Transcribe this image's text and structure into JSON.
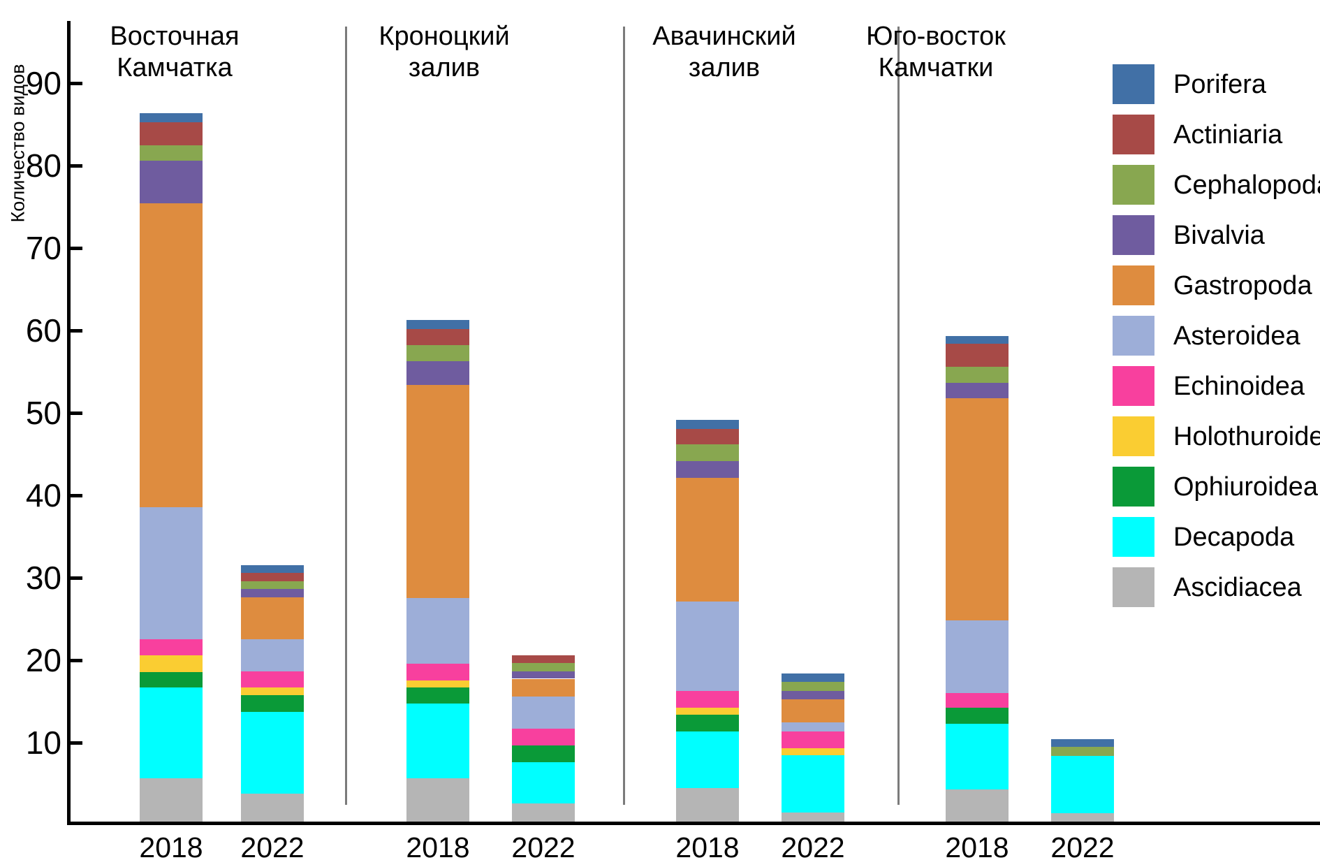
{
  "chart_data": {
    "type": "bar",
    "stacked": true,
    "title": "",
    "xlabel": "",
    "ylabel": "Количество видов",
    "ylim": [
      0,
      95
    ],
    "yticks": [
      10,
      20,
      30,
      40,
      50,
      60,
      70,
      80,
      90
    ],
    "grid": false,
    "legend_position": "right-top",
    "groups": [
      {
        "title_lines": [
          "Восточная",
          "Камчатка"
        ]
      },
      {
        "title_lines": [
          "Кроноцкий",
          "залив"
        ]
      },
      {
        "title_lines": [
          "Авачинский",
          "залив"
        ]
      },
      {
        "title_lines": [
          "Юго-восток",
          "Камчатки"
        ]
      }
    ],
    "x_categories": [
      "2018",
      "2022",
      "2018",
      "2022",
      "2018",
      "2022",
      "2018",
      "2022"
    ],
    "stack_order_bottom_to_top": [
      "Ascidiacea",
      "Decapoda",
      "Ophiuroidea",
      "Holothuroidea",
      "Echinoidea",
      "Asteroidea",
      "Gastropoda",
      "Bivalvia",
      "Cephalopoda",
      "Actiniaria",
      "Porifera"
    ],
    "series": [
      {
        "name": "Porifera",
        "color": "#4170A6",
        "values": [
          1.1,
          1.0,
          1.1,
          0,
          1.1,
          1.0,
          1.0,
          1.0
        ]
      },
      {
        "name": "Actiniaria",
        "color": "#A74A47",
        "values": [
          2.8,
          1.0,
          1.9,
          0.9,
          1.9,
          0,
          2.8,
          0
        ]
      },
      {
        "name": "Cephalopoda",
        "color": "#88A750",
        "values": [
          1.9,
          0.9,
          2.0,
          1.0,
          2.0,
          1.1,
          1.9,
          1.1
        ]
      },
      {
        "name": "Bivalvia",
        "color": "#6F5C9F",
        "values": [
          5.1,
          1.0,
          2.9,
          0.9,
          2.0,
          1.0,
          1.9,
          0
        ]
      },
      {
        "name": "Gastropoda",
        "color": "#DE8C3F",
        "values": [
          36.9,
          5.1,
          25.8,
          2.2,
          15.0,
          2.8,
          26.9,
          0
        ]
      },
      {
        "name": "Asteroidea",
        "color": "#9DAED8",
        "values": [
          16.0,
          3.9,
          8.0,
          3.9,
          10.9,
          1.1,
          8.8,
          0
        ]
      },
      {
        "name": "Echinoidea",
        "color": "#F8409E",
        "values": [
          2.0,
          2.0,
          2.0,
          2.0,
          2.0,
          2.0,
          1.8,
          0
        ]
      },
      {
        "name": "Holothuroidea",
        "color": "#FACD32",
        "values": [
          2.0,
          0.9,
          0.9,
          0,
          0.9,
          0.9,
          0,
          0
        ]
      },
      {
        "name": "Ophiuroidea",
        "color": "#0A9A38",
        "values": [
          1.9,
          2.0,
          1.9,
          2.0,
          2.0,
          0,
          2.0,
          0
        ]
      },
      {
        "name": "Decapoda",
        "color": "#00FFFF",
        "values": [
          11.0,
          9.9,
          9.1,
          5.0,
          6.9,
          6.9,
          7.9,
          6.9
        ]
      },
      {
        "name": "Ascidiacea",
        "color": "#B5B5B5",
        "values": [
          5.4,
          3.6,
          5.4,
          2.4,
          4.2,
          1.3,
          4.1,
          1.2
        ]
      }
    ],
    "bar_totals": [
      86.1,
      31.3,
      61.0,
      20.3,
      48.9,
      18.1,
      59.1,
      10.2
    ]
  }
}
